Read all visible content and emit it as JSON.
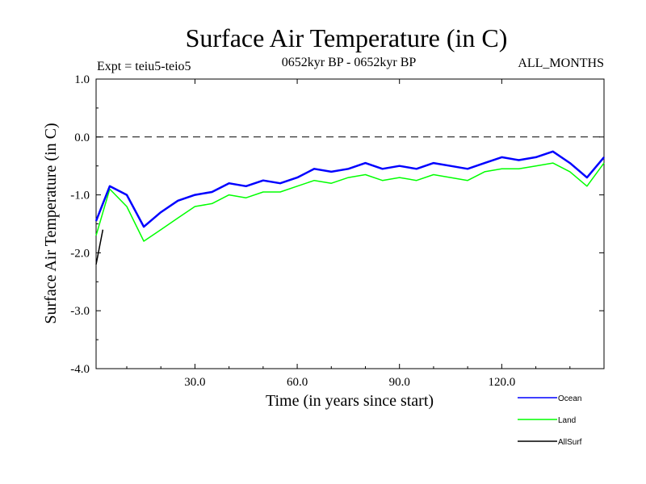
{
  "chart_data": {
    "type": "line",
    "title": "Surface Air Temperature (in C)",
    "subtitle": "0652kyr BP - 0652kyr BP",
    "left_annotation": "Expt = teiu5-teio5",
    "right_annotation": "ALL_MONTHS",
    "xlabel": "Time (in years since start)",
    "ylabel": "Surface Air Temperature (in C)",
    "xlim": [
      1,
      150
    ],
    "ylim": [
      -4.0,
      1.0
    ],
    "x_ticks": [
      30,
      60,
      90,
      120
    ],
    "x_tick_labels": [
      "30.0",
      "60.0",
      "90.0",
      "120.0"
    ],
    "y_ticks": [
      1.0,
      0.0,
      -1.0,
      -2.0,
      -3.0,
      -4.0
    ],
    "y_tick_labels": [
      "1.0",
      "0.0",
      "-1.0",
      "-2.0",
      "-3.0",
      "-4.0"
    ],
    "reference_line": 0.0,
    "legend_position": "bottom-right",
    "series": [
      {
        "name": "Ocean",
        "color": "#0000ff",
        "x": [
          1,
          5,
          10,
          15,
          20,
          25,
          30,
          35,
          40,
          45,
          50,
          55,
          60,
          65,
          70,
          75,
          80,
          85,
          90,
          95,
          100,
          105,
          110,
          115,
          120,
          125,
          130,
          135,
          140,
          145,
          150
        ],
        "values": [
          -1.45,
          -0.85,
          -1.0,
          -1.55,
          -1.3,
          -1.1,
          -1.0,
          -0.95,
          -0.8,
          -0.85,
          -0.75,
          -0.8,
          -0.7,
          -0.55,
          -0.6,
          -0.55,
          -0.45,
          -0.55,
          -0.5,
          -0.55,
          -0.45,
          -0.5,
          -0.55,
          -0.45,
          -0.35,
          -0.4,
          -0.35,
          -0.25,
          -0.45,
          -0.7,
          -0.35
        ]
      },
      {
        "name": "Land",
        "color": "#00ff00",
        "x": [
          1,
          5,
          10,
          15,
          20,
          25,
          30,
          35,
          40,
          45,
          50,
          55,
          60,
          65,
          70,
          75,
          80,
          85,
          90,
          95,
          100,
          105,
          110,
          115,
          120,
          125,
          130,
          135,
          140,
          145,
          150
        ],
        "values": [
          -1.7,
          -0.9,
          -1.2,
          -1.8,
          -1.6,
          -1.4,
          -1.2,
          -1.15,
          -1.0,
          -1.05,
          -0.95,
          -0.95,
          -0.85,
          -0.75,
          -0.8,
          -0.7,
          -0.65,
          -0.75,
          -0.7,
          -0.75,
          -0.65,
          -0.7,
          -0.75,
          -0.6,
          -0.55,
          -0.55,
          -0.5,
          -0.45,
          -0.6,
          -0.85,
          -0.45
        ]
      },
      {
        "name": "AllSurf",
        "color": "#000000",
        "x": [
          1,
          2,
          3
        ],
        "values": [
          -2.2,
          -1.9,
          -1.6
        ]
      }
    ]
  }
}
